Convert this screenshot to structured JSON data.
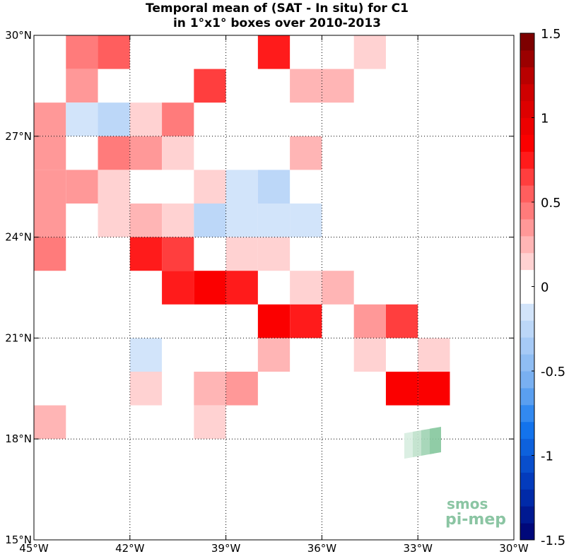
{
  "chart_data": {
    "type": "heatmap",
    "title_line1": "Temporal mean of (SAT - In situ) for C1",
    "title_line2": "in 1°x1° boxes over 2010-2013",
    "x_range": [
      -45,
      -30
    ],
    "y_range": [
      15,
      30
    ],
    "x_ticks": [
      {
        "v": -45,
        "label": "45°W"
      },
      {
        "v": -42,
        "label": "42°W"
      },
      {
        "v": -39,
        "label": "39°W"
      },
      {
        "v": -36,
        "label": "36°W"
      },
      {
        "v": -33,
        "label": "33°W"
      },
      {
        "v": -30,
        "label": "30°W"
      }
    ],
    "y_ticks": [
      {
        "v": 30,
        "label": "30°N"
      },
      {
        "v": 27,
        "label": "27°N"
      },
      {
        "v": 24,
        "label": "24°N"
      },
      {
        "v": 21,
        "label": "21°N"
      },
      {
        "v": 18,
        "label": "18°N"
      },
      {
        "v": 15,
        "label": "15°N"
      }
    ],
    "grid": true,
    "colorbar": {
      "range": [
        -1.5,
        1.5
      ],
      "levels": 30,
      "ticks": [
        {
          "v": 1.5,
          "label": "1.5"
        },
        {
          "v": 1.0,
          "label": "1"
        },
        {
          "v": 0.5,
          "label": "0.5"
        },
        {
          "v": 0,
          "label": "0"
        },
        {
          "v": -0.5,
          "label": "-0.5"
        },
        {
          "v": -1.0,
          "label": "-1"
        },
        {
          "v": -1.5,
          "label": "-1.5"
        }
      ]
    },
    "cells": [
      {
        "lon": -44,
        "lat": 29,
        "value": 0.45
      },
      {
        "lon": -43,
        "lat": 29,
        "value": 0.55
      },
      {
        "lon": -38,
        "lat": 29,
        "value": 0.75
      },
      {
        "lon": -35,
        "lat": 29,
        "value": 0.15
      },
      {
        "lon": -44,
        "lat": 28,
        "value": 0.35
      },
      {
        "lon": -40,
        "lat": 28,
        "value": 0.6
      },
      {
        "lon": -37,
        "lat": 28,
        "value": 0.25
      },
      {
        "lon": -36,
        "lat": 28,
        "value": 0.25
      },
      {
        "lon": -45,
        "lat": 27,
        "value": 0.35
      },
      {
        "lon": -44,
        "lat": 27,
        "value": -0.15
      },
      {
        "lon": -43,
        "lat": 27,
        "value": -0.25
      },
      {
        "lon": -42,
        "lat": 27,
        "value": 0.15
      },
      {
        "lon": -41,
        "lat": 27,
        "value": 0.45
      },
      {
        "lon": -45,
        "lat": 26,
        "value": 0.35
      },
      {
        "lon": -43,
        "lat": 26,
        "value": 0.45
      },
      {
        "lon": -42,
        "lat": 26,
        "value": 0.35
      },
      {
        "lon": -41,
        "lat": 26,
        "value": 0.15
      },
      {
        "lon": -37,
        "lat": 26,
        "value": 0.25
      },
      {
        "lon": -45,
        "lat": 25,
        "value": 0.35
      },
      {
        "lon": -44,
        "lat": 25,
        "value": 0.35
      },
      {
        "lon": -43,
        "lat": 25,
        "value": 0.15
      },
      {
        "lon": -40,
        "lat": 25,
        "value": 0.15
      },
      {
        "lon": -39,
        "lat": 25,
        "value": -0.1
      },
      {
        "lon": -38,
        "lat": 25,
        "value": -0.25
      },
      {
        "lon": -45,
        "lat": 24,
        "value": 0.35
      },
      {
        "lon": -43,
        "lat": 24,
        "value": 0.15
      },
      {
        "lon": -42,
        "lat": 24,
        "value": 0.25
      },
      {
        "lon": -41,
        "lat": 24,
        "value": 0.15
      },
      {
        "lon": -40,
        "lat": 24,
        "value": -0.25
      },
      {
        "lon": -39,
        "lat": 24,
        "value": -0.1
      },
      {
        "lon": -38,
        "lat": 24,
        "value": -0.1
      },
      {
        "lon": -37,
        "lat": 24,
        "value": -0.1
      },
      {
        "lon": -45,
        "lat": 23,
        "value": 0.45
      },
      {
        "lon": -42,
        "lat": 23,
        "value": 0.75
      },
      {
        "lon": -41,
        "lat": 23,
        "value": 0.6
      },
      {
        "lon": -39,
        "lat": 23,
        "value": 0.15
      },
      {
        "lon": -38,
        "lat": 23,
        "value": 0.15
      },
      {
        "lon": -41,
        "lat": 22,
        "value": 0.75
      },
      {
        "lon": -40,
        "lat": 22,
        "value": 0.85
      },
      {
        "lon": -39,
        "lat": 22,
        "value": 0.75
      },
      {
        "lon": -37,
        "lat": 22,
        "value": 0.15
      },
      {
        "lon": -36,
        "lat": 22,
        "value": 0.25
      },
      {
        "lon": -38,
        "lat": 21,
        "value": 0.85
      },
      {
        "lon": -37,
        "lat": 21,
        "value": 0.75
      },
      {
        "lon": -35,
        "lat": 21,
        "value": 0.35
      },
      {
        "lon": -34,
        "lat": 21,
        "value": 0.6
      },
      {
        "lon": -42,
        "lat": 20,
        "value": -0.1
      },
      {
        "lon": -38,
        "lat": 20,
        "value": 0.25
      },
      {
        "lon": -35,
        "lat": 20,
        "value": 0.15
      },
      {
        "lon": -33,
        "lat": 20,
        "value": 0.15
      },
      {
        "lon": -42,
        "lat": 19,
        "value": 0.15
      },
      {
        "lon": -40,
        "lat": 19,
        "value": 0.25
      },
      {
        "lon": -39,
        "lat": 19,
        "value": 0.35
      },
      {
        "lon": -34,
        "lat": 19,
        "value": 0.85
      },
      {
        "lon": -33,
        "lat": 19,
        "value": 0.85
      },
      {
        "lon": -45,
        "lat": 18,
        "value": 0.25
      },
      {
        "lon": -40,
        "lat": 18,
        "value": 0.15
      }
    ]
  },
  "logo": {
    "line1": "smos",
    "line2": "pi-mep"
  }
}
